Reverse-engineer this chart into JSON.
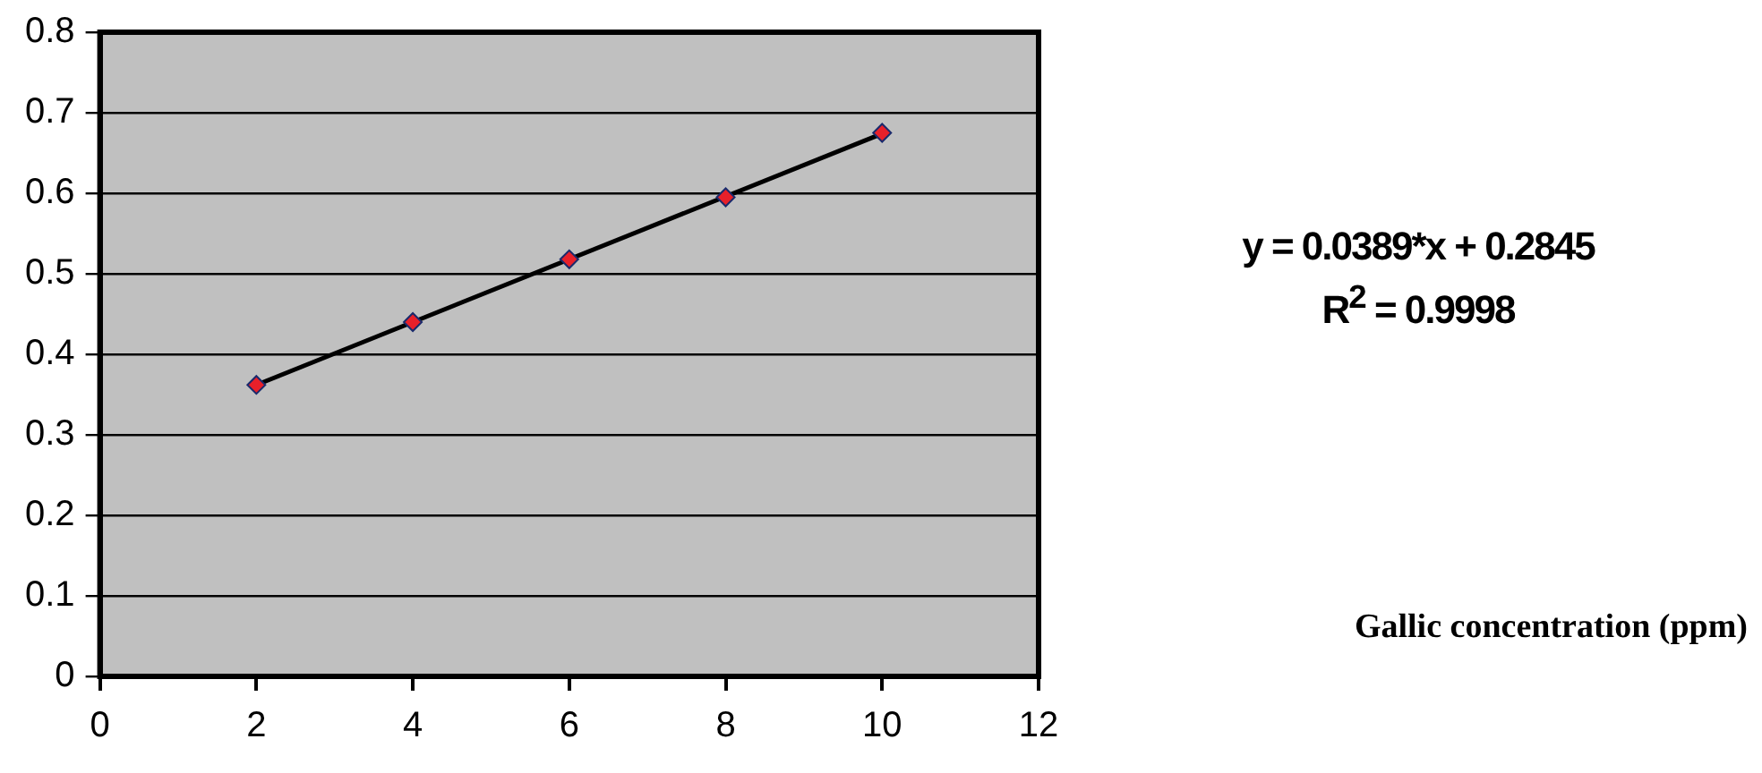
{
  "chart_data": {
    "type": "scatter",
    "series": [
      {
        "color": "#e8202a",
        "x": [
          2,
          4,
          6,
          8,
          10
        ],
        "values": [
          0.362,
          0.44,
          0.518,
          0.595,
          0.675
        ]
      },
      {
        "type": "line",
        "marker": "none",
        "color": "#000000",
        "x": [
          2,
          10
        ],
        "values": [
          0.362,
          0.674
        ]
      }
    ],
    "xlim": [
      0,
      12
    ],
    "xticks": [
      0,
      2,
      4,
      6,
      8,
      10,
      12
    ],
    "ylim": [
      0,
      0.8
    ],
    "yticks": [
      0,
      0.1,
      0.2,
      0.3,
      0.4,
      0.5,
      0.6,
      0.7,
      0.8
    ],
    "grid": "y",
    "legend": false,
    "marker": "diamond",
    "line_style": "solid",
    "annotations": [
      "y = 0.0389*x + 0.2845",
      "R$^{2}$ = 0.9998",
      "Gallic concentration (ppm)"
    ]
  }
}
